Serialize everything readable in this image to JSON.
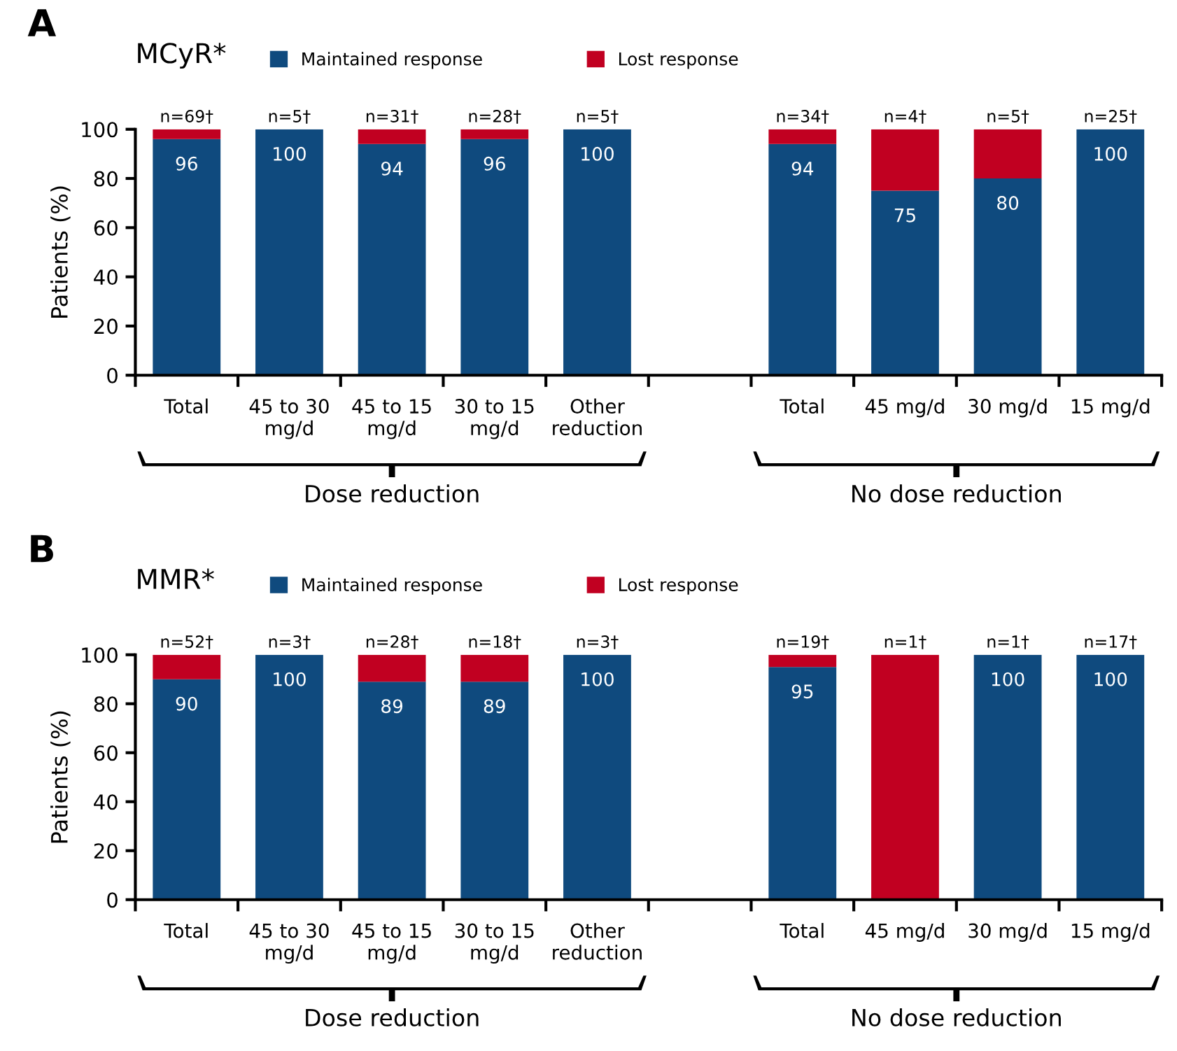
{
  "chart_data": [
    {
      "type": "bar",
      "stacked": true,
      "title": "MCyR*",
      "ylabel": "Patients (%)",
      "annotations": [
        "A",
        "Dose reduction",
        "No dose reduction",
        "n=69†",
        "n=5†",
        "n=31†",
        "n=28†",
        "n=5†",
        "n=34†",
        "n=4†",
        "n=5†",
        "n=25†"
      ],
      "categories": [
        "Total",
        "45 to 30\nmg/d",
        "45 to 15\nmg/d",
        "30 to 15\nmg/d",
        "Other\nreduction",
        null,
        "Total",
        "45 mg/d",
        "30 mg/d",
        "15 mg/d"
      ],
      "series": [
        {
          "name": "Maintained response",
          "color": "#0f4a7e",
          "values": [
            96,
            100,
            94,
            96,
            100,
            null,
            94,
            75,
            80,
            100
          ],
          "value_labels": [
            "96",
            "100",
            "94",
            "96",
            "100",
            null,
            "94",
            "75",
            "80",
            "100"
          ]
        },
        {
          "name": "Lost response",
          "color": "#c10021",
          "values": [
            4,
            0,
            6,
            4,
            0,
            null,
            6,
            25,
            20,
            0
          ]
        }
      ],
      "ylim": [
        0,
        100
      ],
      "yticks": [
        0,
        20,
        40,
        60,
        80,
        100
      ],
      "grid": false,
      "legend": "top"
    },
    {
      "type": "bar",
      "stacked": true,
      "title": "MMR*",
      "ylabel": "Patients (%)",
      "annotations": [
        "B",
        "Dose reduction",
        "No dose reduction",
        "n=52†",
        "n=3†",
        "n=28†",
        "n=18†",
        "n=3†",
        "n=19†",
        "n=1†",
        "n=1†",
        "n=17†"
      ],
      "categories": [
        "Total",
        "45 to 30\nmg/d",
        "45 to 15\nmg/d",
        "30 to 15\nmg/d",
        "Other\nreduction",
        null,
        "Total",
        "45 mg/d",
        "30 mg/d",
        "15 mg/d"
      ],
      "series": [
        {
          "name": "Maintained response",
          "color": "#0f4a7e",
          "values": [
            90,
            100,
            89,
            89,
            100,
            null,
            95,
            0,
            100,
            100
          ],
          "value_labels": [
            "90",
            "100",
            "89",
            "89",
            "100",
            null,
            "95",
            null,
            "100",
            "100"
          ]
        },
        {
          "name": "Lost response",
          "color": "#c10021",
          "values": [
            10,
            0,
            11,
            11,
            0,
            null,
            5,
            100,
            0,
            0
          ]
        }
      ],
      "ylim": [
        0,
        100
      ],
      "yticks": [
        0,
        20,
        40,
        60,
        80,
        100
      ],
      "grid": false,
      "legend": "top"
    }
  ]
}
